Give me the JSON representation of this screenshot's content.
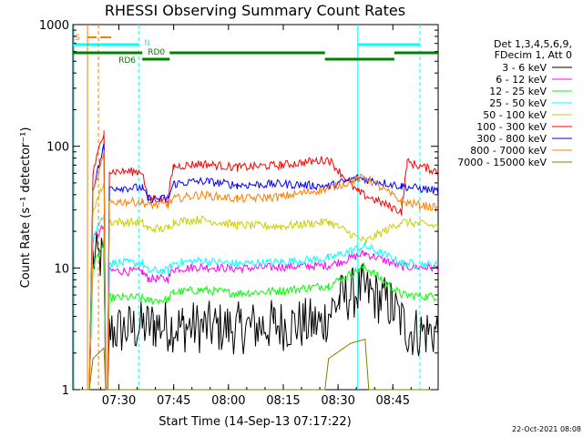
{
  "chart_data": {
    "type": "line",
    "title": "RHESSI Observing Summary Count Rates",
    "xlabel": "Start Time (14-Sep-13 07:17:22)",
    "ylabel": "Count Rate (s⁻¹ detector⁻¹)",
    "x_unit": "minutes after 07:17:22",
    "xlim": [
      0,
      100
    ],
    "ylim": [
      1,
      1000
    ],
    "yscale": "log",
    "x_ticks": [
      {
        "x": 12.6,
        "label": "07:30"
      },
      {
        "x": 27.6,
        "label": "07:45"
      },
      {
        "x": 42.6,
        "label": "08:00"
      },
      {
        "x": 57.6,
        "label": "08:15"
      },
      {
        "x": 72.6,
        "label": "08:30"
      },
      {
        "x": 87.6,
        "label": "08:45"
      }
    ],
    "y_ticks": [
      {
        "y": 1,
        "label": "1"
      },
      {
        "y": 10,
        "label": "10"
      },
      {
        "y": 100,
        "label": "100"
      },
      {
        "y": 1000,
        "label": "1000"
      }
    ],
    "legend_header": [
      "Det 1,3,4,5,6,9,",
      "FDecim 1, Att 0"
    ],
    "legend_placement": "right, outside",
    "date_stamp": "22-Oct-2021 08:08",
    "state_bars": {
      "saa_label": "S",
      "night_label": "N",
      "rd0_label": "RD0",
      "rd6_label": "RD6",
      "saa_color": "#ff8000",
      "night_color": "#00ffff",
      "decim_color": "#008000"
    },
    "series": [
      {
        "name": "3 - 6 keV",
        "color": "#000000",
        "values": [
          [
            0,
            1
          ],
          [
            4.5,
            1
          ],
          [
            5.5,
            12
          ],
          [
            8.5,
            12
          ],
          [
            9,
            1
          ],
          [
            9.5,
            1
          ],
          [
            10,
            3
          ],
          [
            22,
            3.4
          ],
          [
            30,
            3.3
          ],
          [
            45,
            3.2
          ],
          [
            55,
            3.4
          ],
          [
            68,
            3.5
          ],
          [
            73,
            5.5
          ],
          [
            79,
            6.7
          ],
          [
            87,
            5
          ],
          [
            92,
            3
          ],
          [
            100,
            3
          ]
        ]
      },
      {
        "name": "6 - 12 keV",
        "color": "#ff00ff",
        "values": [
          [
            0,
            1
          ],
          [
            4.5,
            1
          ],
          [
            5.5,
            17
          ],
          [
            8.5,
            22
          ],
          [
            9,
            1
          ],
          [
            9.5,
            1
          ],
          [
            10,
            9.5
          ],
          [
            19,
            9.3
          ],
          [
            20.5,
            8.2
          ],
          [
            26,
            8.1
          ],
          [
            27.5,
            9.8
          ],
          [
            35,
            10.2
          ],
          [
            45,
            9.9
          ],
          [
            57,
            10.2
          ],
          [
            70,
            10.5
          ],
          [
            80,
            13.2
          ],
          [
            90,
            10.3
          ],
          [
            100,
            10
          ]
        ]
      },
      {
        "name": "12 - 25 keV",
        "color": "#00ff00",
        "values": [
          [
            0,
            1
          ],
          [
            4.5,
            1
          ],
          [
            5.5,
            10
          ],
          [
            8.5,
            16
          ],
          [
            9,
            1
          ],
          [
            9.5,
            1
          ],
          [
            10,
            5.7
          ],
          [
            19,
            5.7
          ],
          [
            20.5,
            5.4
          ],
          [
            26,
            5.5
          ],
          [
            27.5,
            6.3
          ],
          [
            35,
            6.6
          ],
          [
            45,
            6.2
          ],
          [
            57,
            6.5
          ],
          [
            70,
            7.2
          ],
          [
            80,
            10.2
          ],
          [
            90,
            6
          ],
          [
            100,
            5.8
          ]
        ]
      },
      {
        "name": "25 - 50 keV",
        "color": "#00ffff",
        "values": [
          [
            0,
            1
          ],
          [
            4.5,
            1
          ],
          [
            5.5,
            18
          ],
          [
            8.5,
            28
          ],
          [
            9,
            1
          ],
          [
            9.5,
            1
          ],
          [
            10,
            11
          ],
          [
            19,
            11
          ],
          [
            20.5,
            9.5
          ],
          [
            26,
            9.5
          ],
          [
            27.5,
            11
          ],
          [
            35,
            11.5
          ],
          [
            45,
            10.8
          ],
          [
            57,
            11.2
          ],
          [
            70,
            12
          ],
          [
            80,
            15.2
          ],
          [
            90,
            11
          ],
          [
            100,
            10.5
          ]
        ]
      },
      {
        "name": "50 - 100 keV",
        "color": "#cccc00",
        "values": [
          [
            0,
            1
          ],
          [
            4.5,
            1
          ],
          [
            5.5,
            30
          ],
          [
            8.5,
            50
          ],
          [
            9,
            1
          ],
          [
            9.5,
            1
          ],
          [
            10,
            24
          ],
          [
            19,
            23.5
          ],
          [
            20.5,
            21
          ],
          [
            26,
            21
          ],
          [
            27.5,
            24
          ],
          [
            35,
            25
          ],
          [
            45,
            22.5
          ],
          [
            57,
            22
          ],
          [
            70,
            24
          ],
          [
            80,
            16.5
          ],
          [
            90,
            24
          ],
          [
            100,
            22
          ]
        ]
      },
      {
        "name": "100 - 300 keV",
        "color": "#ff0000",
        "values": [
          [
            0,
            1
          ],
          [
            4.5,
            1
          ],
          [
            5.5,
            60
          ],
          [
            8.5,
            135
          ],
          [
            9,
            1
          ],
          [
            9.5,
            1
          ],
          [
            10,
            62
          ],
          [
            19,
            62
          ],
          [
            20.5,
            37
          ],
          [
            26,
            37
          ],
          [
            27.5,
            68
          ],
          [
            35,
            72
          ],
          [
            45,
            67
          ],
          [
            57,
            70
          ],
          [
            70,
            78
          ],
          [
            78,
            42
          ],
          [
            90,
            29
          ],
          [
            91.5,
            74
          ],
          [
            100,
            62
          ]
        ]
      },
      {
        "name": "300 - 800 keV",
        "color": "#0000ff",
        "values": [
          [
            0,
            1
          ],
          [
            4.5,
            1
          ],
          [
            5.5,
            45
          ],
          [
            8.5,
            100
          ],
          [
            9,
            1
          ],
          [
            9.5,
            1
          ],
          [
            10,
            46
          ],
          [
            19,
            45.5
          ],
          [
            20.5,
            37
          ],
          [
            26,
            37
          ],
          [
            27.5,
            49
          ],
          [
            35,
            52
          ],
          [
            45,
            48
          ],
          [
            57,
            49
          ],
          [
            70,
            47
          ],
          [
            78,
            55
          ],
          [
            90,
            47
          ],
          [
            100,
            43
          ]
        ]
      },
      {
        "name": "800 - 7000 keV",
        "color": "#ff8000",
        "values": [
          [
            0,
            1
          ],
          [
            4.5,
            1
          ],
          [
            5.5,
            40
          ],
          [
            8.5,
            85
          ],
          [
            9,
            1
          ],
          [
            9.5,
            1
          ],
          [
            10,
            35
          ],
          [
            19,
            35
          ],
          [
            20.5,
            33
          ],
          [
            26,
            33
          ],
          [
            27.5,
            37
          ],
          [
            35,
            40
          ],
          [
            45,
            37
          ],
          [
            57,
            38.5
          ],
          [
            70,
            45
          ],
          [
            80,
            56
          ],
          [
            90,
            35
          ],
          [
            100,
            31
          ]
        ]
      },
      {
        "name": "7000 - 15000 keV",
        "color": "#808000",
        "values": [
          [
            0,
            1
          ],
          [
            4.5,
            1
          ],
          [
            5.5,
            1.8
          ],
          [
            8.5,
            2.2
          ],
          [
            9,
            1
          ],
          [
            69,
            1
          ],
          [
            70,
            1.8
          ],
          [
            76,
            2.4
          ],
          [
            80,
            2.6
          ],
          [
            81,
            1
          ],
          [
            100,
            1
          ]
        ]
      }
    ]
  }
}
